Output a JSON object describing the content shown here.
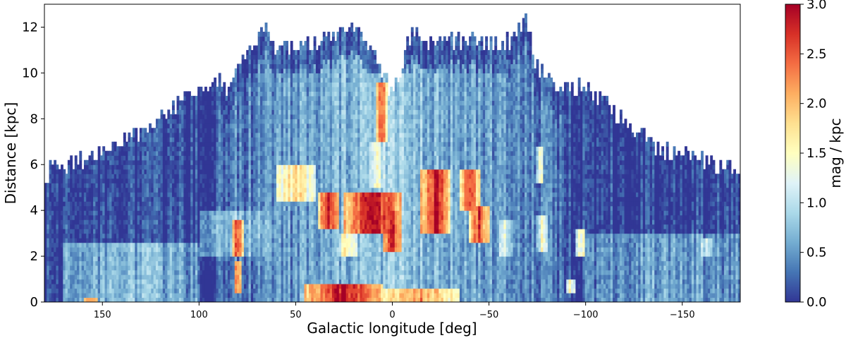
{
  "chart_data": {
    "type": "heatmap",
    "xlabel": "Galactic longitude [deg]",
    "ylabel": "Distance [kpc]",
    "xlim": [
      180,
      -180
    ],
    "ylim": [
      0,
      13
    ],
    "x_ticks": [
      150,
      100,
      50,
      0,
      -50,
      -100,
      -150
    ],
    "x_tick_labels": [
      "150",
      "100",
      "50",
      "0",
      "−50",
      "−100",
      "−150"
    ],
    "y_ticks": [
      0,
      2,
      4,
      6,
      8,
      10,
      12
    ],
    "y_tick_labels": [
      "0",
      "2",
      "4",
      "6",
      "8",
      "10",
      "12"
    ],
    "colorbar": {
      "label": "mag / kpc",
      "range": [
        0,
        3
      ],
      "ticks": [
        0,
        0.5,
        1,
        1.5,
        2,
        2.5,
        3
      ],
      "tick_labels": [
        "0.0",
        "0.5",
        "1.0",
        "1.5",
        "2.0",
        "2.5",
        "3.0"
      ],
      "colormap": "RdYlBu_r",
      "colors": [
        "#313695",
        "#4575b4",
        "#74add1",
        "#abd9e9",
        "#e0f3f8",
        "#ffffbf",
        "#fee090",
        "#fdae61",
        "#f46d43",
        "#d73027",
        "#a50026"
      ]
    },
    "coverage_max_distance": {
      "longitude": [
        180,
        160,
        140,
        120,
        100,
        90,
        85,
        75,
        70,
        65,
        60,
        50,
        40,
        30,
        20,
        10,
        0,
        -10,
        -20,
        -30,
        -40,
        -50,
        -60,
        -65,
        -70,
        -75,
        -85,
        -100,
        -120,
        -140,
        -160,
        -180
      ],
      "distance": [
        5.6,
        6.2,
        7.0,
        8.0,
        9.4,
        9.8,
        9.3,
        10.8,
        11.6,
        12.2,
        11.0,
        11.1,
        11.2,
        11.6,
        11.8,
        10.8,
        9.2,
        11.7,
        11.5,
        11.4,
        11.4,
        11.2,
        11.3,
        11.8,
        12.2,
        10.2,
        9.5,
        9.3,
        8.0,
        6.6,
        6.2,
        5.6
      ]
    },
    "features": [
      {
        "l_min": 38,
        "l_max": 28,
        "d_min": 3.2,
        "d_max": 4.8,
        "value": 2.8
      },
      {
        "l_min": 25,
        "l_max": -5,
        "d_min": 3.0,
        "d_max": 4.8,
        "value": 2.9
      },
      {
        "l_min": 5,
        "l_max": -5,
        "d_min": 2.2,
        "d_max": 4.0,
        "value": 2.7
      },
      {
        "l_min": 8,
        "l_max": 3,
        "d_min": 7.0,
        "d_max": 9.6,
        "value": 2.6
      },
      {
        "l_min": -15,
        "l_max": -30,
        "d_min": 3.0,
        "d_max": 5.8,
        "value": 2.9
      },
      {
        "l_min": -35,
        "l_max": -45,
        "d_min": 4.0,
        "d_max": 5.8,
        "value": 2.6
      },
      {
        "l_min": -40,
        "l_max": -50,
        "d_min": 2.6,
        "d_max": 4.2,
        "value": 2.6
      },
      {
        "l_min": 83,
        "l_max": 77,
        "d_min": 2.0,
        "d_max": 3.6,
        "value": 2.6
      },
      {
        "l_min": 82,
        "l_max": 78,
        "d_min": 0.5,
        "d_max": 1.8,
        "value": 2.4
      },
      {
        "l_min": 45,
        "l_max": 5,
        "d_min": 0.0,
        "d_max": 0.8,
        "value": 2.9
      },
      {
        "l_min": 5,
        "l_max": -35,
        "d_min": 0.0,
        "d_max": 0.7,
        "value": 2.2
      },
      {
        "l_min": 160,
        "l_max": 152,
        "d_min": 0.0,
        "d_max": 0.3,
        "value": 2.4
      },
      {
        "l_min": 60,
        "l_max": 40,
        "d_min": 4.5,
        "d_max": 6.0,
        "value": 1.8
      },
      {
        "l_min": 28,
        "l_max": 18,
        "d_min": 2.0,
        "d_max": 3.0,
        "value": 1.6
      },
      {
        "l_min": 12,
        "l_max": 4,
        "d_min": 5.0,
        "d_max": 7.0,
        "value": 1.4
      },
      {
        "l_min": -55,
        "l_max": -62,
        "d_min": 2.0,
        "d_max": 3.5,
        "value": 1.2
      },
      {
        "l_min": -75,
        "l_max": -80,
        "d_min": 2.2,
        "d_max": 3.8,
        "value": 1.4
      },
      {
        "l_min": -75,
        "l_max": -78,
        "d_min": 5.2,
        "d_max": 6.8,
        "value": 1.6
      },
      {
        "l_min": -95,
        "l_max": -100,
        "d_min": 2.0,
        "d_max": 3.2,
        "value": 1.6
      },
      {
        "l_min": -90,
        "l_max": -95,
        "d_min": 0.5,
        "d_max": 1.0,
        "value": 1.5
      },
      {
        "l_min": 100,
        "l_max": 60,
        "d_min": 2.0,
        "d_max": 4.0,
        "value": 0.8
      },
      {
        "l_min": 170,
        "l_max": 100,
        "d_min": 0.0,
        "d_max": 2.5,
        "value": 0.7
      },
      {
        "l_min": -100,
        "l_max": -180,
        "d_min": 0.0,
        "d_max": 3.0,
        "value": 0.6
      },
      {
        "l_min": 60,
        "l_max": -60,
        "d_min": 6.0,
        "d_max": 10.0,
        "value": 0.7
      },
      {
        "l_min": -160,
        "l_max": -165,
        "d_min": 2.0,
        "d_max": 2.8,
        "value": 1.3
      }
    ]
  }
}
